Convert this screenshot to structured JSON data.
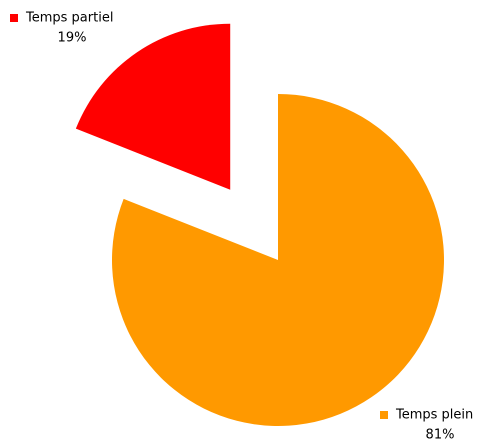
{
  "chart_data": {
    "type": "pie",
    "categories": [
      "Temps plein",
      "Temps partiel"
    ],
    "values": [
      81,
      19
    ],
    "value_labels": [
      "81%",
      "19%"
    ],
    "colors": [
      "#ff9900",
      "#ff0000"
    ],
    "exploded": [
      false,
      true
    ]
  }
}
